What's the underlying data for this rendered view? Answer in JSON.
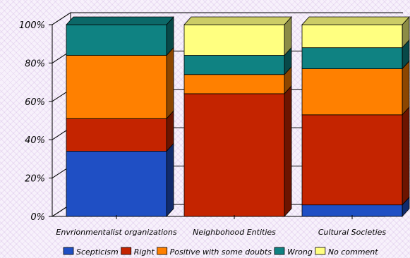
{
  "chart_data": {
    "type": "bar",
    "stacked": true,
    "percent": true,
    "three_d": true,
    "categories": [
      "Envrionmentalist organizations",
      "Neighbohood Entities",
      "Cultural Societies"
    ],
    "series": [
      {
        "name": "Scepticism",
        "color": "#1f4fc4",
        "values": [
          34,
          0,
          6
        ]
      },
      {
        "name": "Right",
        "color": "#c42400",
        "values": [
          17,
          64,
          47
        ]
      },
      {
        "name": "Positive with some doubts",
        "color": "#ff8000",
        "values": [
          33,
          10,
          24
        ]
      },
      {
        "name": "Wrong",
        "color": "#0f8282",
        "values": [
          16,
          10,
          11
        ]
      },
      {
        "name": "No comment",
        "color": "#ffff80",
        "values": [
          0,
          16,
          12
        ]
      }
    ],
    "y_ticks": [
      "0%",
      "20%",
      "40%",
      "60%",
      "80%",
      "100%"
    ],
    "ylim": [
      0,
      100
    ],
    "grid": true,
    "legend_position": "bottom"
  }
}
